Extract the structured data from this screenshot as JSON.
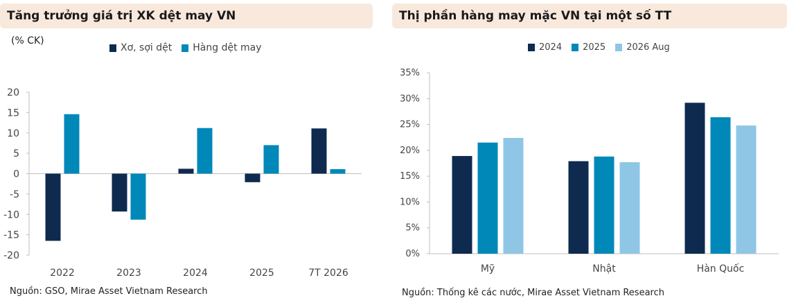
{
  "left": {
    "title": "Tăng trưởng giá trị XK dệt may VN",
    "unit": "(% CK)",
    "source": "Nguồn: GSO, Mirae Asset Vietnam Research"
  },
  "right": {
    "title": "Thị phần hàng may mặc VN tại một số TT",
    "source": "Nguồn: Thống kê các nước, Mirae Asset Vietnam Research"
  },
  "chart_data": [
    {
      "type": "bar",
      "title": "Tăng trưởng giá trị XK dệt may VN",
      "ylabel": "(% CK)",
      "categories": [
        "2022",
        "2023",
        "2024",
        "2025",
        "7T 2026"
      ],
      "series": [
        {
          "name": "Xơ, sợi dệt",
          "color": "#0e2a4f",
          "values": [
            -16.5,
            -9.3,
            1.2,
            -2.1,
            11.1
          ]
        },
        {
          "name": "Hàng dệt may",
          "color": "#0088b9",
          "values": [
            14.6,
            -11.3,
            11.2,
            7.0,
            1.1
          ]
        }
      ],
      "ylim": [
        -20,
        20
      ],
      "yticks": [
        "20",
        "15",
        "10",
        "5",
        "0",
        "-5",
        "-10",
        "-15",
        "-20"
      ],
      "grid": false,
      "legend": "top"
    },
    {
      "type": "bar",
      "title": "Thị phần hàng may mặc VN tại một số TT",
      "categories": [
        "Mỹ",
        "Nhật",
        "Hàn Quốc"
      ],
      "series": [
        {
          "name": "2024",
          "color": "#0e2a4f",
          "values": [
            18.9,
            17.9,
            29.2
          ]
        },
        {
          "name": "2025",
          "color": "#0088b9",
          "values": [
            21.5,
            18.8,
            26.4
          ]
        },
        {
          "name": "2026 Aug",
          "color": "#8fc6e6",
          "values": [
            22.4,
            17.7,
            24.8
          ]
        }
      ],
      "ylim": [
        0,
        35
      ],
      "yticks": [
        "35%",
        "30%",
        "25%",
        "20%",
        "15%",
        "10%",
        "5%",
        "0%"
      ],
      "grid": false,
      "legend": "top"
    }
  ]
}
